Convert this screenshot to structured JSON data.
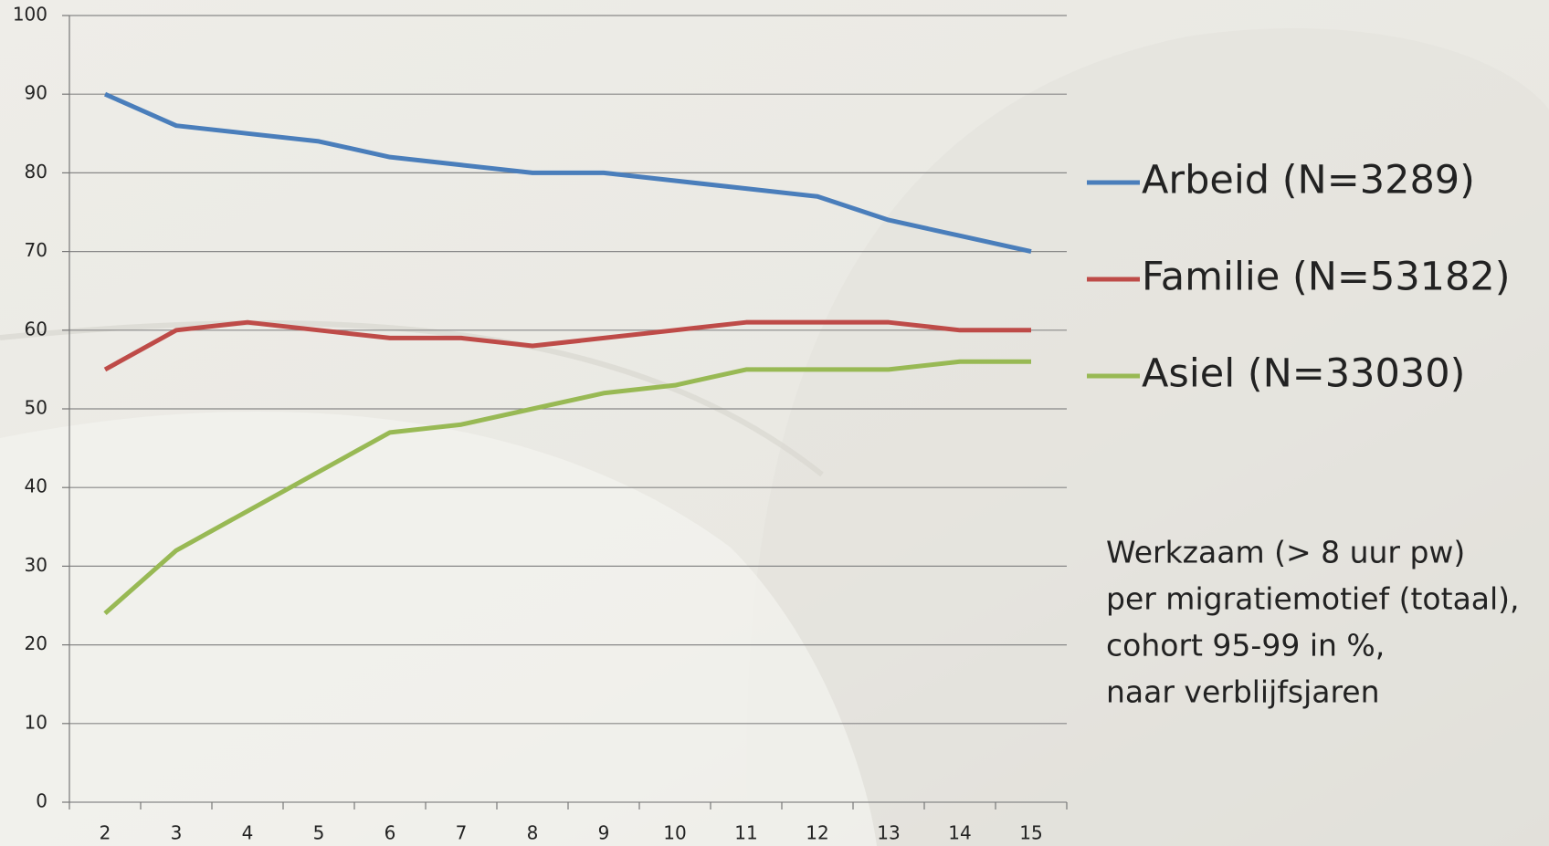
{
  "chart_data": {
    "type": "line",
    "categories": [
      "2",
      "3",
      "4",
      "5",
      "6",
      "7",
      "8",
      "9",
      "10",
      "11",
      "12",
      "13",
      "14",
      "15"
    ],
    "series": [
      {
        "name": "Arbeid (N=3289)",
        "color": "#4a7ebb",
        "values": [
          90,
          86,
          85,
          84,
          82,
          81,
          80,
          80,
          79,
          78,
          77,
          74,
          72,
          70
        ]
      },
      {
        "name": "Familie (N=53182)",
        "color": "#be4b48",
        "values": [
          55,
          60,
          61,
          60,
          59,
          59,
          58,
          59,
          60,
          61,
          61,
          61,
          60,
          60
        ]
      },
      {
        "name": "Asiel (N=33030)",
        "color": "#98b954",
        "values": [
          24,
          32,
          37,
          42,
          47,
          48,
          50,
          52,
          53,
          55,
          55,
          55,
          56,
          56
        ]
      }
    ],
    "ylim": [
      0,
      100
    ],
    "yticks": [
      0,
      10,
      20,
      30,
      40,
      50,
      60,
      70,
      80,
      90,
      100
    ],
    "grid": true,
    "annotation": [
      "Werkzaam (> 8 uur pw)",
      "per migratiemotief (totaal),",
      "cohort 95-99 in %,",
      "naar verblijfsjaren"
    ]
  }
}
